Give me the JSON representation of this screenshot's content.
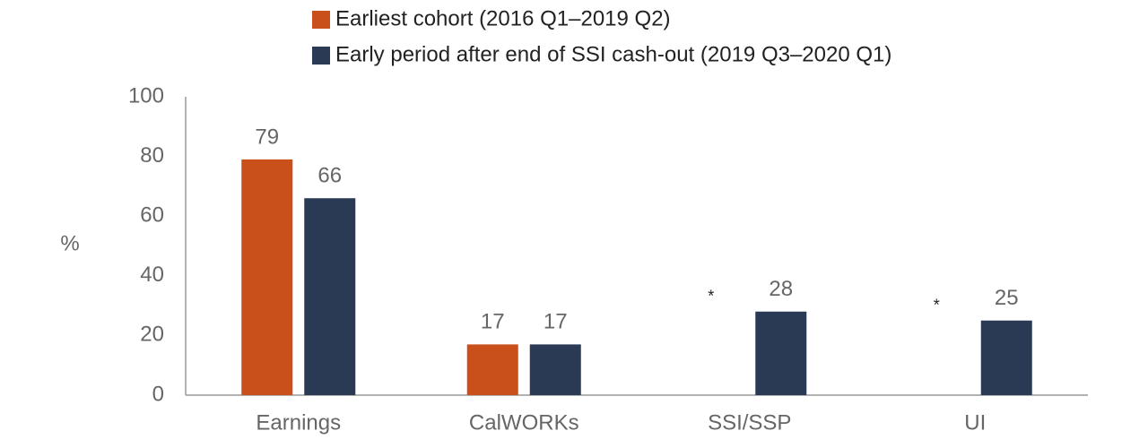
{
  "chart_data": {
    "type": "bar",
    "ylabel": "%",
    "categories": [
      "Earnings",
      "CalWORKs",
      "SSI/SSP",
      "UI"
    ],
    "series": [
      {
        "name": "Earliest cohort (2016 Q1–2019 Q2)",
        "color": "#c94f1b",
        "values": [
          79,
          17,
          null,
          null
        ],
        "value_labels": [
          "79",
          "17",
          "*",
          "*"
        ]
      },
      {
        "name": "Early period after end of SSI cash-out (2019 Q3–2020 Q1)",
        "color": "#2a3a54",
        "values": [
          66,
          17,
          28,
          25
        ]
      }
    ],
    "ylim": [
      0,
      100
    ],
    "yticks": [
      0,
      20,
      40,
      60,
      80,
      100
    ],
    "grid": false
  }
}
